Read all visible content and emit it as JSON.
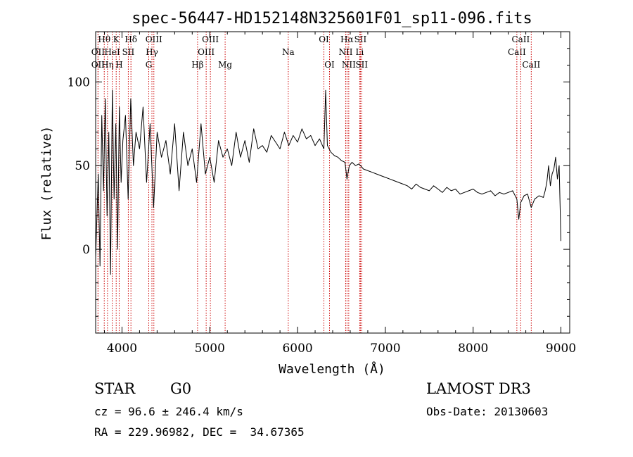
{
  "chart_data": {
    "type": "line",
    "title": "spec-56447-HD152148N325601F01_sp11-096.fits",
    "xlabel": "Wavelength (Å)",
    "ylabel": "Flux (relative)",
    "xlim": [
      3700,
      9100
    ],
    "ylim": [
      -50,
      130
    ],
    "x_ticks": [
      4000,
      5000,
      6000,
      7000,
      8000,
      9000
    ],
    "y_ticks": [
      0,
      50,
      100
    ],
    "line_color": "#000000",
    "marker_color": "#cc0000",
    "spectrum": {
      "name": "flux",
      "x": [
        3700,
        3730,
        3750,
        3770,
        3790,
        3810,
        3830,
        3850,
        3870,
        3890,
        3910,
        3930,
        3950,
        3970,
        3990,
        4010,
        4040,
        4070,
        4100,
        4130,
        4160,
        4200,
        4240,
        4280,
        4320,
        4360,
        4400,
        4450,
        4500,
        4550,
        4600,
        4650,
        4700,
        4750,
        4800,
        4850,
        4900,
        4950,
        5000,
        5050,
        5100,
        5150,
        5200,
        5250,
        5300,
        5350,
        5400,
        5450,
        5500,
        5550,
        5600,
        5650,
        5700,
        5750,
        5800,
        5850,
        5900,
        5950,
        6000,
        6050,
        6100,
        6150,
        6200,
        6250,
        6300,
        6320,
        6340,
        6380,
        6420,
        6460,
        6500,
        6540,
        6563,
        6590,
        6620,
        6660,
        6700,
        6750,
        6800,
        6850,
        6900,
        6950,
        7000,
        7050,
        7100,
        7150,
        7200,
        7250,
        7300,
        7350,
        7400,
        7450,
        7500,
        7550,
        7600,
        7650,
        7700,
        7750,
        7800,
        7850,
        7900,
        7950,
        8000,
        8050,
        8100,
        8150,
        8200,
        8250,
        8300,
        8350,
        8400,
        8450,
        8498,
        8520,
        8542,
        8580,
        8620,
        8662,
        8700,
        8750,
        8800,
        8820,
        8840,
        8860,
        8880,
        8900,
        8920,
        8940,
        8960,
        8980,
        9000
      ],
      "y": [
        -5,
        45,
        -10,
        80,
        35,
        90,
        20,
        70,
        -15,
        95,
        30,
        75,
        0,
        85,
        40,
        65,
        80,
        30,
        90,
        50,
        70,
        60,
        85,
        40,
        75,
        25,
        70,
        55,
        65,
        45,
        75,
        35,
        70,
        50,
        60,
        40,
        75,
        45,
        55,
        40,
        65,
        55,
        60,
        50,
        70,
        55,
        65,
        52,
        72,
        60,
        62,
        58,
        68,
        64,
        60,
        70,
        62,
        68,
        64,
        72,
        66,
        68,
        62,
        66,
        60,
        95,
        62,
        58,
        56,
        55,
        53,
        52,
        42,
        50,
        52,
        50,
        51,
        48,
        47,
        46,
        45,
        44,
        43,
        42,
        41,
        40,
        39,
        38,
        36,
        39,
        37,
        36,
        35,
        38,
        36,
        34,
        37,
        35,
        36,
        33,
        34,
        35,
        36,
        34,
        33,
        34,
        35,
        32,
        34,
        33,
        34,
        35,
        30,
        18,
        28,
        32,
        33,
        25,
        30,
        32,
        31,
        35,
        40,
        50,
        38,
        45,
        48,
        55,
        42,
        50,
        5
      ]
    },
    "line_markers": [
      {
        "label": "OII",
        "wavelength": 3727,
        "row": 2
      },
      {
        "label": "OII",
        "wavelength": 3727,
        "row": 3
      },
      {
        "label": "Hθ",
        "wavelength": 3798,
        "row": 1
      },
      {
        "label": "Hη",
        "wavelength": 3835,
        "row": 3
      },
      {
        "label": "HeI",
        "wavelength": 3889,
        "row": 2
      },
      {
        "label": "K",
        "wavelength": 3934,
        "row": 1
      },
      {
        "label": "H",
        "wavelength": 3968,
        "row": 3
      },
      {
        "label": "SII",
        "wavelength": 4072,
        "row": 2
      },
      {
        "label": "Hδ",
        "wavelength": 4102,
        "row": 1
      },
      {
        "label": "G",
        "wavelength": 4305,
        "row": 3
      },
      {
        "label": "Hγ",
        "wavelength": 4341,
        "row": 2
      },
      {
        "label": "OIII",
        "wavelength": 4363,
        "row": 1
      },
      {
        "label": "Hβ",
        "wavelength": 4861,
        "row": 3
      },
      {
        "label": "OIII",
        "wavelength": 4959,
        "row": 2
      },
      {
        "label": "OIII",
        "wavelength": 5007,
        "row": 1
      },
      {
        "label": "Mg",
        "wavelength": 5175,
        "row": 3
      },
      {
        "label": "Na",
        "wavelength": 5894,
        "row": 2
      },
      {
        "label": "OI",
        "wavelength": 6300,
        "row": 1
      },
      {
        "label": "OI",
        "wavelength": 6364,
        "row": 3
      },
      {
        "label": "NII",
        "wavelength": 6548,
        "row": 2
      },
      {
        "label": "Hα",
        "wavelength": 6563,
        "row": 1
      },
      {
        "label": "NII",
        "wavelength": 6583,
        "row": 3
      },
      {
        "label": "Li",
        "wavelength": 6708,
        "row": 2
      },
      {
        "label": "SII",
        "wavelength": 6716,
        "row": 1
      },
      {
        "label": "SII",
        "wavelength": 6731,
        "row": 3
      },
      {
        "label": "CaII",
        "wavelength": 8498,
        "row": 2
      },
      {
        "label": "CaII",
        "wavelength": 8542,
        "row": 1
      },
      {
        "label": "CaII",
        "wavelength": 8662,
        "row": 3
      }
    ]
  },
  "info": {
    "class_label": "STAR",
    "subclass_label": "G0",
    "survey_label": "LAMOST DR3",
    "redshift_text": "cz = 96.6 ± 246.4 km/s",
    "obs_date_text": "Obs-Date: 20130603",
    "coords_text": "RA = 229.96982, DEC =  34.67365"
  }
}
